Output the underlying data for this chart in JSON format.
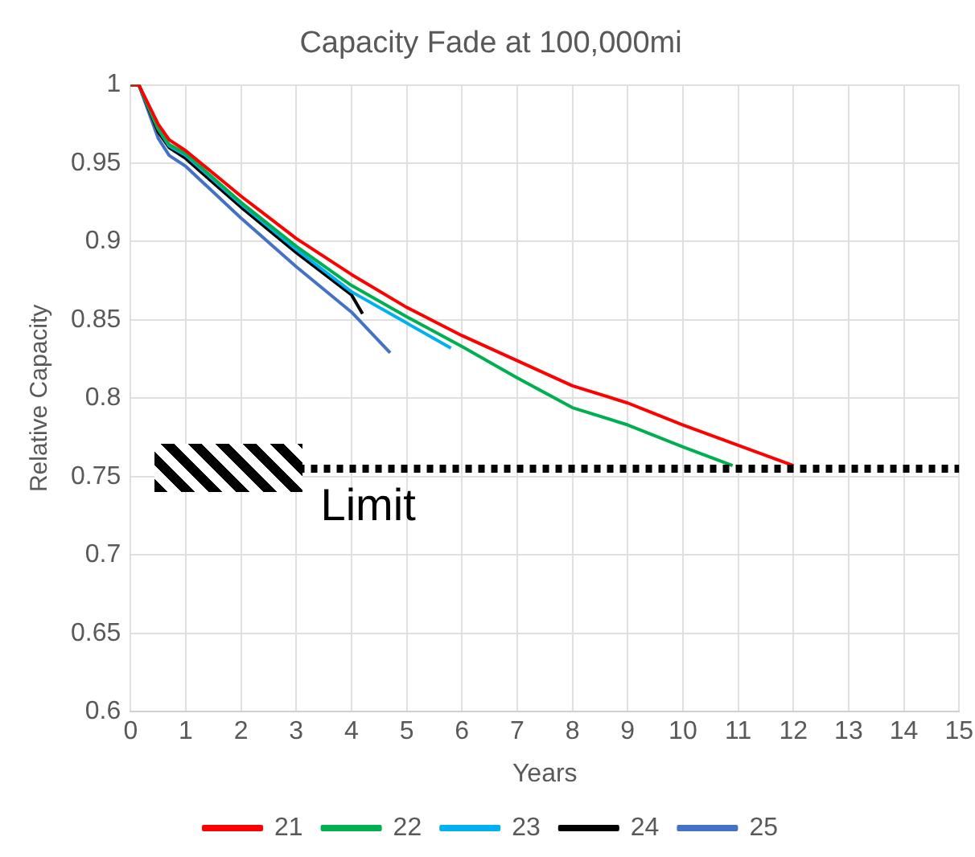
{
  "chart_data": {
    "type": "line",
    "title": "Capacity Fade at 100,000mi",
    "xlabel": "Years",
    "ylabel": "Relative Capacity",
    "xlim": [
      0,
      15
    ],
    "xticks": [
      0,
      1,
      2,
      3,
      4,
      5,
      6,
      7,
      8,
      9,
      10,
      11,
      12,
      13,
      14,
      15
    ],
    "ylim": [
      0.6,
      1
    ],
    "yticks": [
      0.6,
      0.65,
      0.7,
      0.75,
      0.8,
      0.85,
      0.9,
      0.95,
      1
    ],
    "grid": true,
    "legend": "bottom",
    "marker": "none",
    "line_style": "solid",
    "ref_lines": [
      {
        "axis": "y",
        "value": 0.755,
        "label": "Limit",
        "color": "#000000",
        "line_style": "dotted"
      }
    ],
    "series": [
      {
        "name": "21",
        "color": "#ff0000",
        "x": [
          0,
          0.15,
          0.5,
          0.7,
          1,
          2,
          3,
          4,
          5,
          6,
          7,
          8,
          9,
          10,
          11,
          12
        ],
        "values": [
          1,
          1,
          0.975,
          0.965,
          0.958,
          0.929,
          0.902,
          0.879,
          0.858,
          0.84,
          0.824,
          0.808,
          0.797,
          0.783,
          0.77,
          0.757
        ]
      },
      {
        "name": "22",
        "color": "#00b050",
        "x": [
          0,
          0.15,
          0.5,
          0.7,
          1,
          2,
          3,
          4,
          5,
          6,
          7,
          8,
          9,
          10,
          10.9
        ],
        "values": [
          1,
          1,
          0.972,
          0.962,
          0.956,
          0.925,
          0.897,
          0.872,
          0.852,
          0.833,
          0.813,
          0.794,
          0.783,
          0.769,
          0.757
        ]
      },
      {
        "name": "23",
        "color": "#00b0f0",
        "x": [
          0,
          0.15,
          0.5,
          0.7,
          1,
          2,
          3,
          4,
          5,
          5.8
        ],
        "values": [
          1,
          1,
          0.972,
          0.961,
          0.955,
          0.924,
          0.895,
          0.868,
          0.848,
          0.832
        ]
      },
      {
        "name": "24",
        "color": "#000000",
        "x": [
          0,
          0.15,
          0.5,
          0.7,
          1,
          2,
          3,
          4,
          4.2
        ],
        "values": [
          1,
          1,
          0.97,
          0.96,
          0.953,
          0.922,
          0.893,
          0.866,
          0.854
        ]
      },
      {
        "name": "25",
        "color": "#4472c4",
        "x": [
          0,
          0.15,
          0.5,
          0.7,
          1,
          2,
          3,
          4,
          4.7
        ],
        "values": [
          1,
          1,
          0.966,
          0.955,
          0.948,
          0.915,
          0.884,
          0.855,
          0.829
        ]
      }
    ]
  }
}
